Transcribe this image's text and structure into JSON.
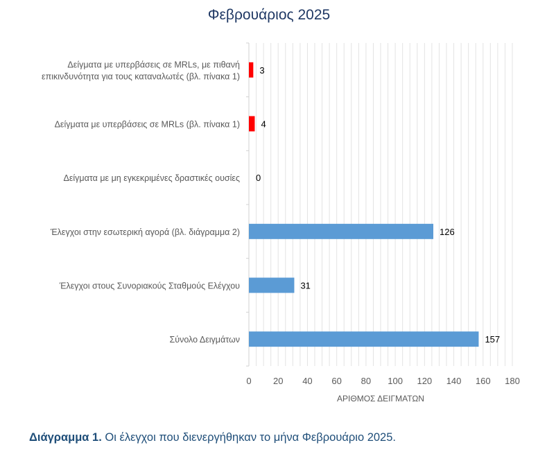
{
  "chart_data": {
    "type": "bar",
    "orientation": "horizontal",
    "title": "Φεβρουάριος 2025",
    "xlabel": "ΑΡΙΘΜΟΣ ΔΕΙΓΜΑΤΩΝ",
    "ylabel": "",
    "xlim": [
      0,
      180
    ],
    "xticks": [
      "0",
      "20",
      "40",
      "60",
      "80",
      "100",
      "120",
      "140",
      "160",
      "180"
    ],
    "grid": true,
    "categories": [
      [
        "Δείγματα με υπερβάσεις σε MRLs, με πιθανή",
        "επικινδυνότητα για τους καταναλωτές (βλ. πίνακα 1)"
      ],
      [
        "Δείγματα με υπερβάσεις σε MRLs (βλ. πίνακα 1)"
      ],
      [
        "Δείγματα με μη εγκεκριμένες δραστικές ουσίες"
      ],
      [
        "Έλεγχοι στην εσωτερική αγορά (βλ. διάγραμμα 2)"
      ],
      [
        "Έλεγχοι στους Συνοριακούς Σταθμούς Ελέγχου"
      ],
      [
        "Σύνολο Δειγμάτων"
      ]
    ],
    "values": [
      3,
      4,
      0,
      126,
      31,
      157
    ],
    "value_labels": [
      "3",
      "4",
      "0",
      "126",
      "31",
      "157"
    ],
    "colors": [
      "#ff0000",
      "#ff0000",
      "#ff0000",
      "#5b9bd5",
      "#5b9bd5",
      "#5b9bd5"
    ]
  },
  "caption": {
    "label": "Διάγραμμα 1.",
    "text": " Οι έλεγχοι που διενεργήθηκαν το μήνα Φεβρουάριο 2025."
  }
}
